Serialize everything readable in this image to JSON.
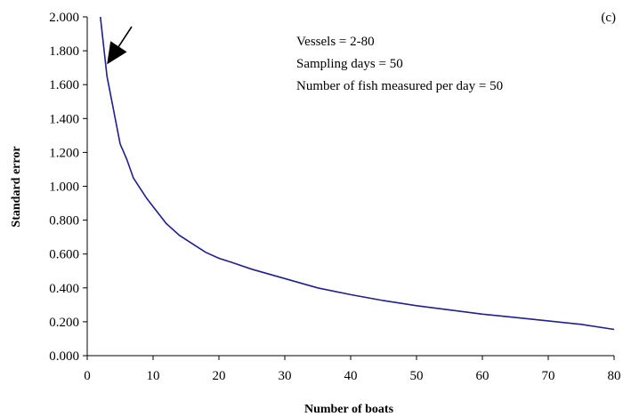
{
  "chart_data": {
    "type": "line",
    "panel_label": "(c)",
    "xlabel": "Number of boats",
    "ylabel": "Standard error",
    "xlim": [
      0,
      80
    ],
    "ylim": [
      0.0,
      2.0
    ],
    "x_ticks": [
      "0",
      "10",
      "20",
      "30",
      "40",
      "50",
      "60",
      "70",
      "80"
    ],
    "y_ticks": [
      "0.000",
      "0.200",
      "0.400",
      "0.600",
      "0.800",
      "1.000",
      "1.200",
      "1.400",
      "1.600",
      "1.800",
      "2.000"
    ],
    "grid": false,
    "annotations": [
      "Vessels = 2-80",
      "Sampling days = 50",
      "Number of fish measured per day = 50"
    ],
    "arrow_points_to": [
      3,
      1.72
    ],
    "series": [
      {
        "color": "#1f1f8f",
        "x": [
          2,
          3,
          4,
          5,
          6,
          7,
          8,
          9,
          10,
          12,
          14,
          16,
          18,
          20,
          22,
          25,
          30,
          35,
          40,
          45,
          50,
          55,
          60,
          65,
          70,
          75,
          80
        ],
        "y": [
          2.0,
          1.65,
          1.45,
          1.25,
          1.16,
          1.05,
          0.99,
          0.93,
          0.88,
          0.78,
          0.71,
          0.66,
          0.61,
          0.575,
          0.55,
          0.51,
          0.455,
          0.4,
          0.36,
          0.325,
          0.295,
          0.27,
          0.245,
          0.225,
          0.205,
          0.185,
          0.155
        ]
      }
    ]
  }
}
